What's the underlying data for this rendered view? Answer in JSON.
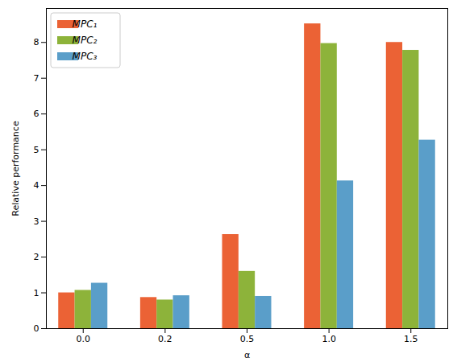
{
  "chart_data": {
    "type": "bar",
    "x_label": "α",
    "y_label": "Relative performance",
    "categories": [
      "0.0",
      "0.2",
      "0.5",
      "1.0",
      "1.5"
    ],
    "series": [
      {
        "name": "MPC₁",
        "color": "#eb6235",
        "values": [
          1.0,
          0.87,
          2.63,
          8.52,
          8.0
        ]
      },
      {
        "name": "MPC₂",
        "color": "#8db33a",
        "values": [
          1.07,
          0.8,
          1.6,
          7.97,
          7.78
        ]
      },
      {
        "name": "MPC₃",
        "color": "#5a9ec9",
        "values": [
          1.27,
          0.92,
          0.9,
          4.13,
          5.27
        ]
      }
    ],
    "ylim": [
      0,
      8.95
    ],
    "yticks": [
      0,
      1,
      2,
      3,
      4,
      5,
      6,
      7,
      8
    ],
    "legend": "upper left"
  }
}
